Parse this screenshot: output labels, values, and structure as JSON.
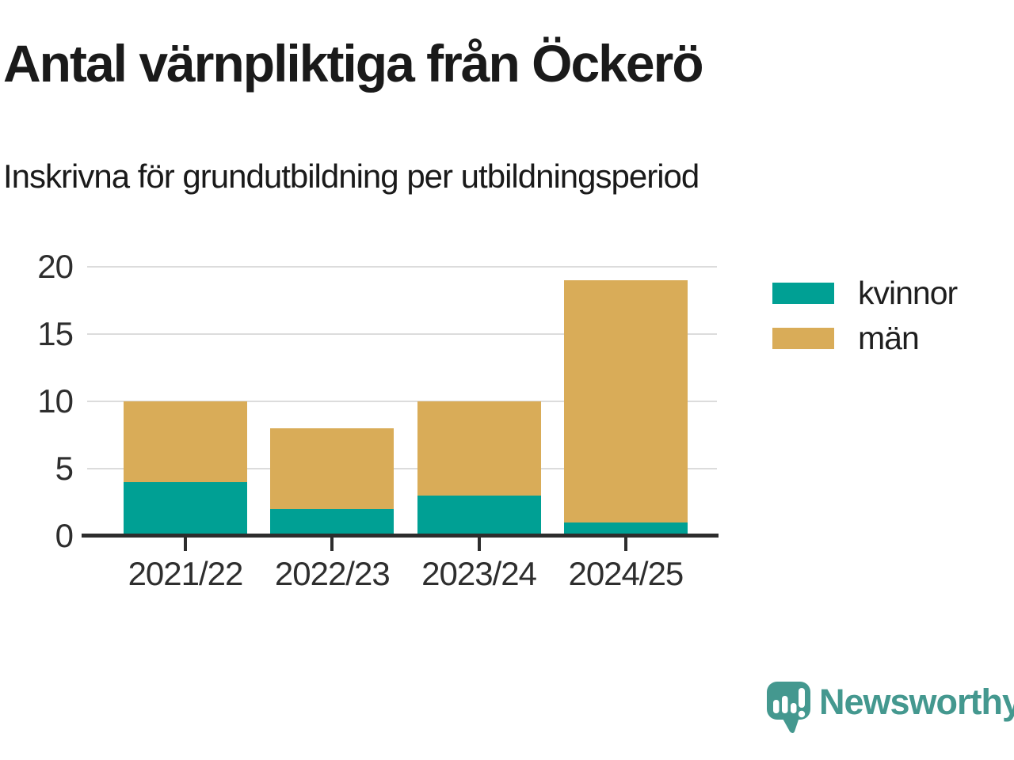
{
  "header": {
    "title": "Antal värnpliktiga från Öckerö",
    "subtitle": "Inskrivna för grundutbildning per utbildningsperiod"
  },
  "chart_data": {
    "type": "bar",
    "stacked": true,
    "title": "Antal värnpliktiga från Öckerö",
    "subtitle": "Inskrivna för grundutbildning per utbildningsperiod",
    "categories": [
      "2021/22",
      "2022/23",
      "2023/24",
      "2024/25"
    ],
    "series": [
      {
        "name": "kvinnor",
        "color": "#00a094",
        "values": [
          4,
          2,
          3,
          1
        ]
      },
      {
        "name": "män",
        "color": "#d9ac58",
        "values": [
          6,
          6,
          7,
          18
        ]
      }
    ],
    "stack_totals": [
      10,
      8,
      10,
      19
    ],
    "xlabel": "",
    "ylabel": "",
    "ylim": [
      0,
      20
    ],
    "y_ticks": [
      0,
      5,
      10,
      15,
      20
    ],
    "grid": "horizontal",
    "legend_position": "right"
  },
  "legend": {
    "items": [
      {
        "label": "kvinnor",
        "color": "#00a094"
      },
      {
        "label": "män",
        "color": "#d9ac58"
      }
    ]
  },
  "branding": {
    "logo_text": "Newsworthy",
    "logo_color": "#44988f",
    "logo_icon": "newsworthy-speech-bubble-chart-icon"
  },
  "colors": {
    "series_kvinnor": "#00a094",
    "series_man": "#d9ac58",
    "title_text": "#1a1a1a",
    "axis_line": "#2d2d2d",
    "gridline": "#dcdcdc"
  }
}
